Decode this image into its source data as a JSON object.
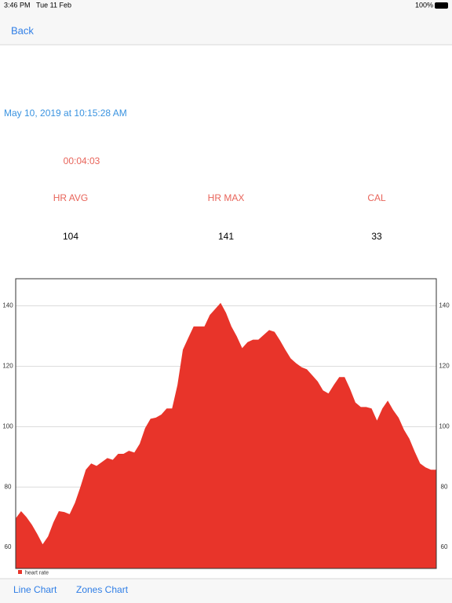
{
  "status_bar": {
    "time": "3:46 PM",
    "date": "Tue 11 Feb",
    "battery": "100%"
  },
  "nav": {
    "back": "Back"
  },
  "workout": {
    "date": "May 10, 2019 at 10:15:28 AM",
    "duration": "00:04:03",
    "stats": [
      {
        "label": "HR AVG",
        "value": 104
      },
      {
        "label": "HR MAX",
        "value": 141
      },
      {
        "label": "CAL",
        "value": 33
      }
    ]
  },
  "chart_data": {
    "type": "area",
    "series": [
      {
        "name": "heart rate",
        "color": "#e8342a",
        "values": [
          69.6,
          72,
          70,
          67.5,
          64.4,
          61,
          63.6,
          68.3,
          72,
          71.7,
          71,
          74.8,
          80,
          85.7,
          87.8,
          87,
          88.3,
          89.6,
          89,
          91,
          91,
          92,
          91.4,
          94.3,
          99.5,
          102.6,
          103,
          104,
          106,
          106,
          113.8,
          125.5,
          129.4,
          133.2,
          133.2,
          133.2,
          137,
          139,
          141,
          137.7,
          133.2,
          129.9,
          126,
          128,
          128.8,
          128.8,
          130.4,
          132,
          131.4,
          128.6,
          125.5,
          122.6,
          121,
          119.7,
          119,
          117,
          115,
          112,
          111,
          113.8,
          116.4,
          116.4,
          112.5,
          108,
          106.5,
          106.5,
          106,
          102,
          106,
          108.6,
          105.5,
          103,
          99,
          96,
          91.7,
          87.8,
          86.5,
          85.7,
          85.7
        ]
      }
    ],
    "ylim": [
      53,
      149
    ],
    "yticks": [
      60,
      80,
      100,
      120,
      140
    ],
    "y2lim": [
      53,
      149
    ],
    "y2ticks": [
      60,
      80,
      100,
      120,
      140
    ],
    "grid": true
  },
  "tabs": [
    "Line Chart",
    "Zones Chart"
  ]
}
